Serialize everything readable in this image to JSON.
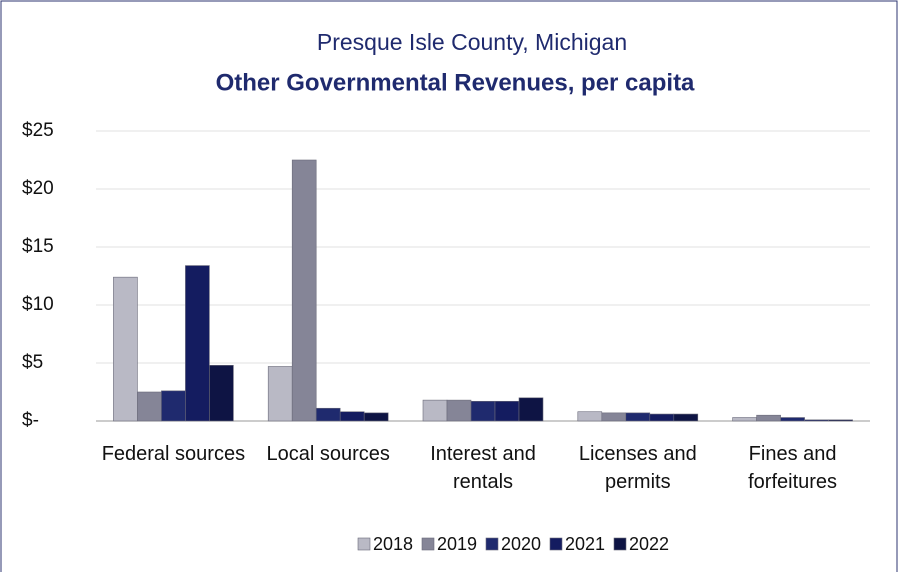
{
  "chart_data": {
    "type": "bar",
    "title": "Presque Isle County, Michigan",
    "subtitle": "Other Governmental Revenues, per capita",
    "categories": [
      "Federal sources",
      "Local sources",
      "Interest and rentals",
      "Licenses and permits",
      "Fines and forfeitures"
    ],
    "series": [
      {
        "name": "2018",
        "color": "#b9b9c5",
        "values": [
          12.4,
          4.7,
          1.8,
          0.8,
          0.3
        ]
      },
      {
        "name": "2019",
        "color": "#858597",
        "values": [
          2.5,
          22.5,
          1.8,
          0.7,
          0.5
        ]
      },
      {
        "name": "2020",
        "color": "#1f2a6e",
        "values": [
          2.6,
          1.1,
          1.7,
          0.7,
          0.3
        ]
      },
      {
        "name": "2021",
        "color": "#141c60",
        "values": [
          13.4,
          0.8,
          1.7,
          0.6,
          0.1
        ]
      },
      {
        "name": "2022",
        "color": "#0e1444",
        "values": [
          4.8,
          0.7,
          2.0,
          0.6,
          0.1
        ]
      }
    ],
    "ylim": [
      0,
      25
    ],
    "yticks": [
      {
        "value": 0,
        "label": "$-"
      },
      {
        "value": 5,
        "label": "$5"
      },
      {
        "value": 10,
        "label": "$10"
      },
      {
        "value": 15,
        "label": "$15"
      },
      {
        "value": 20,
        "label": "$20"
      },
      {
        "value": 25,
        "label": "$25"
      }
    ],
    "grid": true,
    "legend": "bottom"
  }
}
